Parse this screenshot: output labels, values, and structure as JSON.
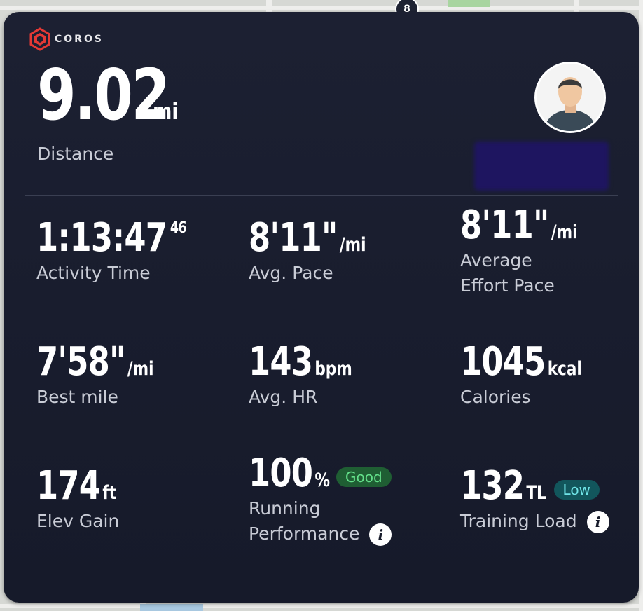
{
  "map": {
    "pin_number": "8"
  },
  "brand": {
    "name": "COROS",
    "accent": "#e53935"
  },
  "distance": {
    "value": "9.02",
    "unit": "mi",
    "label": "Distance"
  },
  "stats": {
    "activity_time": {
      "value": "1:13:47",
      "fraction": "46",
      "label": "Activity Time"
    },
    "avg_pace": {
      "value": "8'11\"",
      "unit": "/mi",
      "label": "Avg. Pace"
    },
    "avg_effort_pace": {
      "value": "8'11\"",
      "unit": "/mi",
      "label_line1": "Average",
      "label_line2": "Effort Pace"
    },
    "best_mile": {
      "value": "7'58\"",
      "unit": "/mi",
      "label": "Best mile"
    },
    "avg_hr": {
      "value": "143",
      "unit": "bpm",
      "label": "Avg. HR"
    },
    "calories": {
      "value": "1045",
      "unit": "kcal",
      "label": "Calories"
    },
    "elev_gain": {
      "value": "174",
      "unit": "ft",
      "label": "Elev Gain"
    },
    "running_performance": {
      "value": "100",
      "unit": "%",
      "badge": "Good",
      "label_line1": "Running",
      "label_line2": "Performance",
      "info_icon": "info-icon"
    },
    "training_load": {
      "value": "132",
      "unit": "TL",
      "badge": "Low",
      "label": "Training Load",
      "info_icon": "info-icon"
    }
  },
  "colors": {
    "card_bg": "#1c2032",
    "good": "#63e08a",
    "low": "#6fe3e6"
  }
}
